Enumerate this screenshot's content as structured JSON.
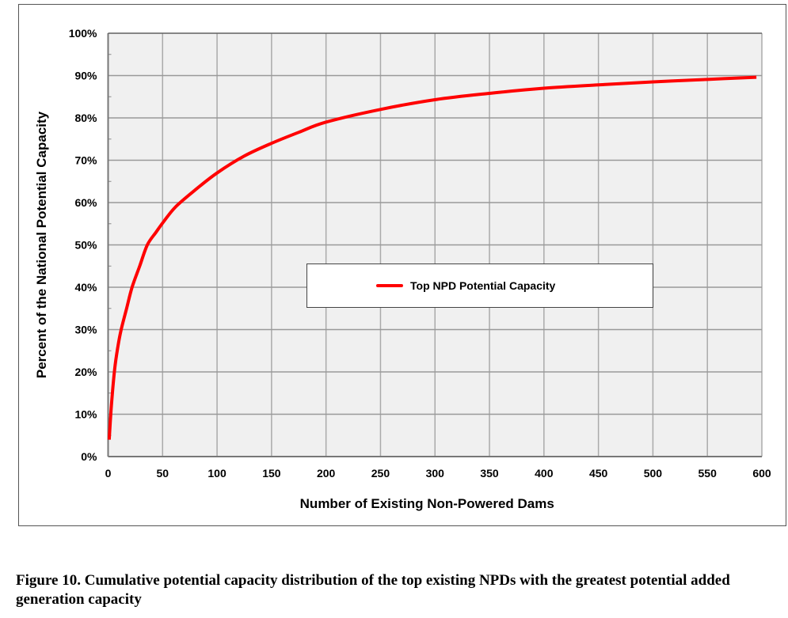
{
  "chart_data": {
    "type": "line",
    "xlabel": "Number of Existing Non-Powered Dams",
    "ylabel": "Percent of the National Potential Capacity",
    "xlim": [
      0,
      600
    ],
    "ylim": [
      0,
      100
    ],
    "xticks": [
      0,
      50,
      100,
      150,
      200,
      250,
      300,
      350,
      400,
      450,
      500,
      550,
      600
    ],
    "yticks": [
      "0%",
      "10%",
      "20%",
      "30%",
      "40%",
      "50%",
      "60%",
      "70%",
      "80%",
      "90%",
      "100%"
    ],
    "grid": true,
    "legend": {
      "placement": "center",
      "entries": [
        "Top NPD Potential Capacity"
      ]
    },
    "series": [
      {
        "name": "Top NPD Potential Capacity",
        "color": "#ff0000",
        "x": [
          1,
          3,
          6,
          9,
          12,
          17,
          22,
          29,
          36,
          44,
          51,
          62,
          80,
          100,
          125,
          150,
          175,
          200,
          250,
          300,
          350,
          400,
          450,
          500,
          550,
          595
        ],
        "y": [
          4,
          12,
          20.6,
          26,
          30,
          35,
          40,
          45,
          50,
          53,
          55.5,
          59,
          63,
          67,
          71,
          74,
          76.6,
          79,
          82,
          84.3,
          85.8,
          87,
          87.8,
          88.5,
          89.1,
          89.6
        ]
      }
    ]
  },
  "caption": "Figure 10. Cumulative potential capacity distribution of the top existing NPDs with the greatest potential added generation capacity"
}
